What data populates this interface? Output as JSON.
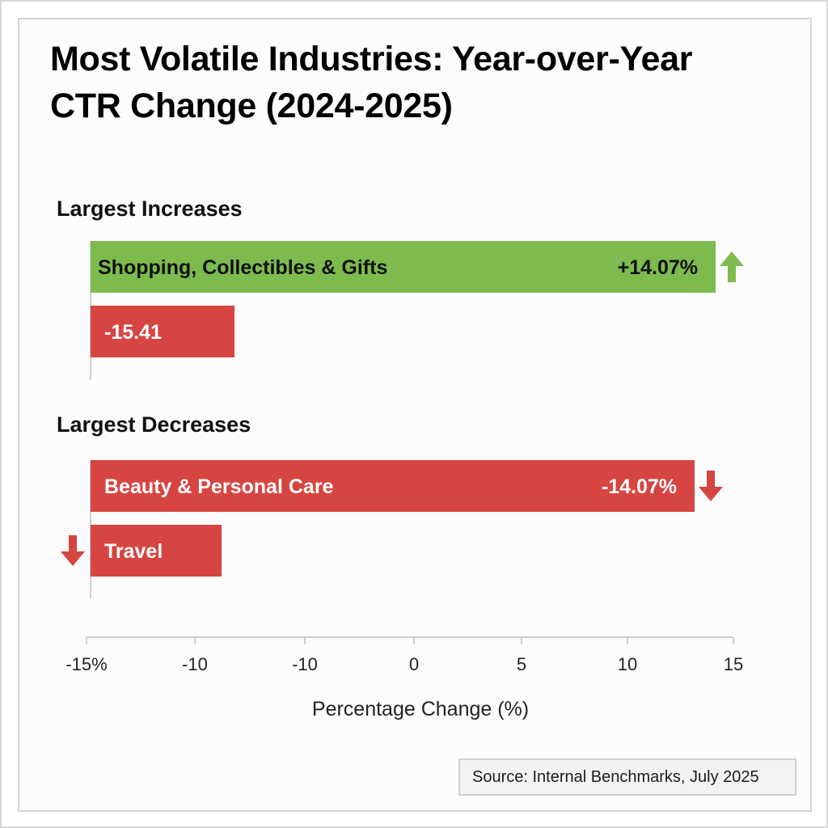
{
  "chart_data": {
    "type": "bar",
    "orientation": "horizontal",
    "title": "Most Volatile Industries: Year-over-Year CTR Change (2024-2025)",
    "xlabel": "Percentage Change (%)",
    "ylabel": "",
    "xlim": [
      -15,
      15
    ],
    "x_ticks": [
      -15,
      -10,
      -10,
      0,
      5,
      10,
      15
    ],
    "x_tick_labels": [
      "-15%",
      "-10",
      "-10",
      "0",
      "5",
      "10",
      "15"
    ],
    "grid": false,
    "groups": [
      {
        "name": "Largest Increases",
        "bars": [
          {
            "label": "Shopping, Collectibles & Gifts",
            "value": 14.07,
            "value_label": "+14.07%",
            "color": "#7dbb4f",
            "text_color": "#111111",
            "arrow": "up",
            "arrow_side": "right"
          },
          {
            "label": "",
            "value": -15.41,
            "value_label": "-15.41",
            "color": "#d64541",
            "text_color": "#ffffff",
            "arrow": null,
            "arrow_side": null
          }
        ]
      },
      {
        "name": "Largest Decreases",
        "bars": [
          {
            "label": "Beauty & Personal Care",
            "value": -14.07,
            "value_label": "-14.07%",
            "color": "#d64541",
            "text_color": "#ffffff",
            "arrow": "down",
            "arrow_side": "right"
          },
          {
            "label": "Travel",
            "value": null,
            "value_label": "",
            "color": "#d64541",
            "text_color": "#ffffff",
            "arrow": "down",
            "arrow_side": "left"
          }
        ]
      }
    ],
    "source": "Source: Internal Benchmarks, July 2025"
  },
  "colors": {
    "increase": "#7dbb4f",
    "decrease": "#d64541",
    "axis": "#cfcfcf"
  }
}
